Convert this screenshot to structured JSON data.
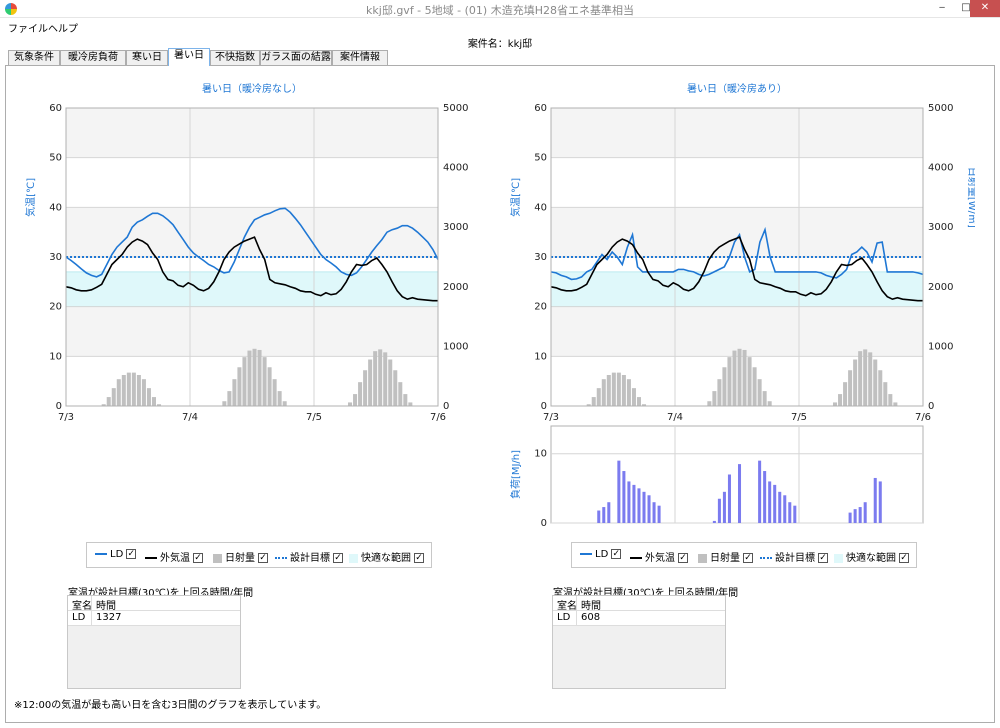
{
  "window": {
    "title": "kkj邸.gvf - 5地域 - (01) 木造充填H28省エネ基準相当",
    "min": "‒",
    "max": "□",
    "close": "✕",
    "app_icon": "color-wheel-icon"
  },
  "menu": [
    {
      "label": "ファイル"
    },
    {
      "label": "ヘルプ"
    }
  ],
  "case_name": "案件名：kkj邸",
  "tabs": [
    {
      "label": "気象条件"
    },
    {
      "label": "暖冷房負荷"
    },
    {
      "label": "寒い日"
    },
    {
      "label": "暑い日",
      "active": true
    },
    {
      "label": "不快指数"
    },
    {
      "label": "ガラス面の結露"
    },
    {
      "label": "案件情報"
    }
  ],
  "colors": {
    "ld": "#1f77d4",
    "outdoor": "#000000",
    "solar": "#c0c0c0",
    "target": "#1f77d4",
    "comfort": "#dff8fa",
    "load": "#7b7bef"
  },
  "left_chart": {
    "title": "暑い日（暖冷房なし）",
    "ylabel_left": "気温[℃]",
    "ylabel_right": "日射量[W/㎡]"
  },
  "right_chart": {
    "title": "暑い日（暖冷房あり）",
    "ylabel_left": "気温[℃]",
    "ylabel_right": "日射量[W/㎡]",
    "load_ylabel": "負荷[MJ/h]"
  },
  "legend": {
    "ld": "LD",
    "outdoor": "外気温",
    "solar": "日射量",
    "target": "設計目標",
    "comfort": "快適な範囲",
    "check": "✓"
  },
  "left_stats": {
    "title": "室温が設計目標(30℃)を上回る時間/年間",
    "col_room": "室名",
    "col_hours": "時間",
    "room": "LD",
    "hours": "1327"
  },
  "right_stats": {
    "title": "室温が設計目標(30℃)を上回る時間/年間",
    "col_room": "室名",
    "col_hours": "時間",
    "room": "LD",
    "hours": "608"
  },
  "footnote": "※12:00の気温が最も高い日を含む3日間のグラフを表示しています。",
  "chart_data": [
    {
      "type": "line",
      "title": "暑い日（暖冷房なし）",
      "ylabel": "気温[℃]",
      "y2label": "日射量[W/㎡]",
      "ylim": [
        0,
        60
      ],
      "y2lim": [
        0,
        5000
      ],
      "yticks": [
        0,
        10,
        20,
        30,
        40,
        50,
        60
      ],
      "y2ticks": [
        0,
        1000,
        2000,
        3000,
        4000,
        5000
      ],
      "xticks": [
        "7/3",
        "7/4",
        "7/5",
        "7/6"
      ],
      "grid": true,
      "design_target": 30,
      "comfort_range": [
        20,
        27
      ],
      "series": [
        {
          "name": "LD",
          "values": [
            30,
            29.3,
            28.5,
            27.6,
            26.8,
            26.3,
            26,
            26.5,
            28.5,
            30.5,
            32,
            33,
            34,
            36,
            37,
            37.5,
            38.2,
            38.8,
            38.8,
            38.3,
            37.5,
            36.5,
            35,
            33.5,
            32,
            30.8,
            30,
            29.3,
            28.5,
            28,
            27.3,
            26.8,
            27,
            29,
            31.5,
            34,
            36,
            37.5,
            38,
            38.5,
            38.8,
            39.3,
            39.7,
            39.8,
            39,
            37.8,
            36.5,
            35,
            33.5,
            32,
            30.5,
            29.5,
            28.8,
            28,
            27,
            26.5,
            26.3,
            26.8,
            28,
            29.5,
            31,
            32.3,
            33.5,
            35,
            35.5,
            35.8,
            36.3,
            36.3,
            35.8,
            35,
            34,
            33,
            31.5,
            29.5
          ]
        },
        {
          "name": "外気温",
          "values": [
            24,
            23.8,
            23.4,
            23.2,
            23.2,
            23.4,
            23.9,
            24.5,
            26.5,
            28.5,
            29.5,
            30.5,
            32,
            33,
            33.6,
            33.2,
            32.5,
            30.8,
            29.5,
            27,
            25.5,
            25.2,
            24.3,
            24,
            24.8,
            24.3,
            23.5,
            23.2,
            23.7,
            25,
            27,
            29.5,
            31,
            32,
            32.6,
            33.2,
            33.6,
            34,
            31.5,
            29.5,
            25.5,
            24.8,
            24.6,
            24.4,
            24,
            23.7,
            23.2,
            23,
            23,
            22.5,
            22.2,
            22.8,
            22.4,
            22.6,
            23.5,
            25,
            27,
            28.5,
            28.3,
            28.5,
            29.3,
            29.8,
            28.5,
            27,
            25,
            23.2,
            22,
            21.5,
            21.8,
            21.5,
            21.4,
            21.3,
            21.2,
            21.2
          ]
        },
        {
          "name": "日射量",
          "values": [
            0,
            0,
            0,
            0,
            0,
            0,
            0,
            0,
            20,
            60,
            120,
            200,
            310,
            420,
            500,
            550,
            560,
            540,
            500,
            420,
            300,
            180,
            80,
            20,
            0,
            0,
            0,
            0,
            0,
            0,
            0,
            0,
            0,
            0,
            0,
            0,
            0,
            0,
            0,
            0,
            0,
            0,
            0,
            0,
            0,
            0,
            0,
            0,
            0,
            0,
            0,
            0,
            0,
            0,
            0,
            0,
            0,
            0,
            0,
            0,
            0,
            0,
            0,
            0,
            0,
            0,
            0,
            0,
            0,
            0,
            0,
            0,
            0,
            0
          ]
        }
      ],
      "solar_bars": [
        0,
        0,
        0,
        0,
        0,
        0,
        0,
        30,
        150,
        300,
        450,
        520,
        560,
        560,
        520,
        450,
        300,
        150,
        30,
        0,
        0,
        0,
        0,
        0,
        0,
        0,
        0,
        0,
        0,
        0,
        0,
        80,
        250,
        450,
        650,
        820,
        930,
        960,
        940,
        820,
        650,
        450,
        250,
        80,
        0,
        0,
        0,
        0,
        0,
        0,
        0,
        0,
        0,
        0,
        0,
        0,
        60,
        200,
        400,
        600,
        780,
        920,
        950,
        900,
        780,
        600,
        400,
        200,
        60,
        0,
        0,
        0,
        0,
        0
      ]
    },
    {
      "type": "line",
      "title": "暑い日（暖冷房あり）",
      "ylabel": "気温[℃]",
      "y2label": "日射量[W/㎡]",
      "ylim": [
        0,
        60
      ],
      "y2lim": [
        0,
        5000
      ],
      "yticks": [
        0,
        10,
        20,
        30,
        40,
        50,
        60
      ],
      "y2ticks": [
        0,
        1000,
        2000,
        3000,
        4000,
        5000
      ],
      "xticks": [
        "7/3",
        "7/4",
        "7/5",
        "7/6"
      ],
      "grid": true,
      "design_target": 30,
      "comfort_range": [
        20,
        27
      ],
      "series": [
        {
          "name": "LD",
          "values": [
            27,
            26.8,
            26.3,
            26,
            25.5,
            25.6,
            26,
            27,
            27.5,
            29,
            30.5,
            29.5,
            31,
            30,
            28.5,
            32,
            34.5,
            28,
            27,
            27,
            27,
            27,
            27,
            27,
            27,
            27.5,
            27.5,
            27.2,
            27,
            26.5,
            26.2,
            26.5,
            27,
            27.5,
            28,
            30,
            33,
            34.5,
            30,
            27,
            27.5,
            33,
            35.5,
            30,
            27,
            27,
            27,
            27,
            27,
            27,
            27,
            27,
            27,
            26.8,
            26.3,
            26,
            25.8,
            26.5,
            27.5,
            30.5,
            31,
            32,
            31,
            29,
            32.8,
            33,
            27,
            27,
            27,
            27,
            27,
            27,
            26.8,
            26.5
          ]
        },
        {
          "name": "外気温",
          "values": [
            24,
            23.8,
            23.4,
            23.2,
            23.2,
            23.4,
            23.9,
            24.5,
            26.5,
            28.5,
            29.5,
            30.5,
            32,
            33,
            33.6,
            33.2,
            32.5,
            30.8,
            29.5,
            27,
            25.5,
            25.2,
            24.3,
            24,
            24.8,
            24.3,
            23.5,
            23.2,
            23.7,
            25,
            27,
            29.5,
            31,
            32,
            32.6,
            33.2,
            33.6,
            34,
            31.5,
            29.5,
            25.5,
            24.8,
            24.6,
            24.4,
            24,
            23.7,
            23.2,
            23,
            23,
            22.5,
            22.2,
            22.8,
            22.4,
            22.6,
            23.5,
            25,
            27,
            28.5,
            28.3,
            28.5,
            29.3,
            29.8,
            28.5,
            27,
            25,
            23.2,
            22,
            21.5,
            21.8,
            21.5,
            21.4,
            21.3,
            21.2,
            21.2
          ]
        }
      ],
      "solar_bars": [
        0,
        0,
        0,
        0,
        0,
        0,
        0,
        30,
        150,
        300,
        450,
        520,
        560,
        560,
        520,
        450,
        300,
        150,
        30,
        0,
        0,
        0,
        0,
        0,
        0,
        0,
        0,
        0,
        0,
        0,
        0,
        80,
        250,
        450,
        650,
        820,
        930,
        960,
        940,
        820,
        650,
        450,
        250,
        80,
        0,
        0,
        0,
        0,
        0,
        0,
        0,
        0,
        0,
        0,
        0,
        0,
        60,
        200,
        400,
        600,
        780,
        920,
        950,
        900,
        780,
        600,
        400,
        200,
        60,
        0,
        0,
        0,
        0,
        0
      ]
    },
    {
      "type": "bar",
      "title": "",
      "ylabel": "負荷[MJ/h]",
      "ylim": [
        0,
        14
      ],
      "yticks": [
        0,
        10
      ],
      "grid": true,
      "values": [
        0,
        0,
        0,
        0,
        0,
        0,
        0,
        0,
        0,
        1.8,
        2.3,
        3,
        0,
        9,
        7.5,
        6,
        5.5,
        5,
        4.5,
        4,
        3,
        2.5,
        0,
        0,
        0,
        0,
        0,
        0,
        0,
        0,
        0,
        0,
        0.3,
        3.5,
        4.5,
        7,
        0,
        8.5,
        0,
        0,
        0,
        9,
        7.5,
        6,
        5.5,
        4.5,
        4,
        3,
        2.5,
        0,
        0,
        0,
        0,
        0,
        0,
        0,
        0,
        0,
        0,
        1.5,
        2,
        2.3,
        3,
        0,
        6.5,
        6,
        0,
        0,
        0,
        0,
        0,
        0,
        0,
        0
      ]
    }
  ]
}
